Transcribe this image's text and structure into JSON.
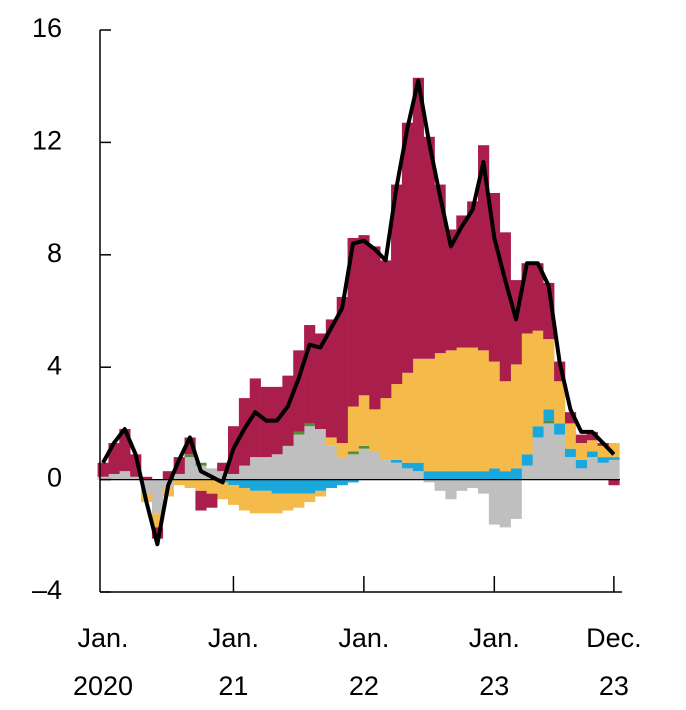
{
  "chart_data": {
    "type": "bar",
    "stacked": true,
    "categories": [
      "Jan.\n2020",
      null,
      null,
      null,
      null,
      null,
      null,
      null,
      null,
      null,
      null,
      null,
      "Jan.\n21",
      null,
      null,
      null,
      null,
      null,
      null,
      null,
      null,
      null,
      null,
      null,
      "Jan.\n22",
      null,
      null,
      null,
      null,
      null,
      null,
      null,
      null,
      null,
      null,
      null,
      "Jan.\n23",
      null,
      null,
      null,
      null,
      null,
      null,
      null,
      null,
      null,
      null,
      "Dec.\n23"
    ],
    "series": [
      {
        "color": "#bfbfbf",
        "values": [
          0.1,
          0.2,
          0.3,
          0.1,
          -0.5,
          -1.2,
          -0.3,
          0.2,
          0.8,
          0.5,
          0.4,
          0.3,
          0.2,
          0.5,
          0.8,
          0.8,
          0.9,
          1.2,
          1.6,
          1.9,
          1.8,
          1.2,
          0.8,
          0.9,
          1.1,
          1.0,
          0.7,
          0.6,
          0.4,
          0.3,
          -0.1,
          -0.4,
          -0.7,
          -0.4,
          -0.3,
          -0.5,
          -1.6,
          -1.7,
          -1.4,
          0.5,
          1.5,
          2.0,
          1.6,
          0.8,
          0.4,
          0.8,
          0.6,
          0.7
        ]
      },
      {
        "color": "#5a8a3a",
        "values": [
          0,
          0,
          0,
          0,
          0,
          0,
          0,
          0,
          0.1,
          0.1,
          0,
          0,
          0,
          0,
          0,
          0,
          0,
          0,
          0.1,
          0.1,
          0,
          0,
          0,
          0.1,
          0.1,
          0,
          0,
          0,
          0,
          0,
          0,
          0,
          0,
          0,
          0,
          0,
          0,
          0,
          0,
          0,
          0,
          0.1,
          0,
          0,
          0,
          0,
          0,
          0
        ]
      },
      {
        "color": "#1aa7dc",
        "values": [
          0,
          0,
          0,
          0,
          0,
          0,
          0,
          0,
          0,
          0,
          0,
          -0.1,
          -0.2,
          -0.3,
          -0.4,
          -0.4,
          -0.5,
          -0.5,
          -0.5,
          -0.5,
          -0.4,
          -0.3,
          -0.2,
          -0.1,
          0,
          0,
          0,
          0.1,
          0.2,
          0.3,
          0.3,
          0.3,
          0.3,
          0.3,
          0.3,
          0.3,
          0.4,
          0.3,
          0.4,
          0.4,
          0.4,
          0.4,
          0.4,
          0.3,
          0.3,
          0.2,
          0.2,
          0.1
        ]
      },
      {
        "color": "#f4bb4a",
        "values": [
          0,
          0,
          0,
          0,
          -0.3,
          -0.5,
          -0.3,
          -0.2,
          -0.3,
          -0.4,
          -0.5,
          -0.6,
          -0.7,
          -0.8,
          -0.8,
          -0.8,
          -0.7,
          -0.6,
          -0.5,
          -0.3,
          -0.2,
          0.3,
          0.5,
          1.6,
          1.8,
          1.5,
          2.2,
          2.7,
          3.2,
          3.7,
          4.0,
          4.2,
          4.3,
          4.4,
          4.4,
          4.3,
          3.8,
          3.2,
          3.7,
          4.3,
          3.4,
          2.5,
          1.5,
          0.9,
          0.6,
          0.4,
          0.4,
          0.5
        ]
      },
      {
        "color": "#a91e4b",
        "values": [
          0.5,
          1.1,
          1.5,
          0.8,
          0.1,
          -0.4,
          0.3,
          0.6,
          0.6,
          -0.7,
          -0.5,
          0.3,
          1.7,
          2.4,
          2.8,
          2.5,
          2.4,
          2.5,
          2.9,
          3.5,
          3.4,
          4.2,
          5.2,
          6.0,
          5.7,
          5.8,
          4.9,
          7.1,
          8.9,
          10.0,
          7.9,
          6.0,
          4.3,
          4.7,
          5.2,
          7.3,
          6.0,
          5.3,
          3.0,
          2.5,
          2.4,
          2.0,
          0.7,
          0.4,
          0.3,
          0.3,
          0.1,
          -0.2
        ]
      },
      {
        "type": "line",
        "color": "#000000",
        "values": [
          0.6,
          1.3,
          1.8,
          0.9,
          -0.8,
          -2.3,
          -0.2,
          0.7,
          1.5,
          0.3,
          0.1,
          -0.1,
          1.1,
          1.8,
          2.4,
          2.1,
          2.1,
          2.6,
          3.6,
          4.8,
          4.7,
          5.4,
          6.1,
          8.4,
          8.5,
          8.2,
          7.8,
          10.4,
          12.5,
          14.2,
          12.0,
          10.1,
          8.3,
          9.0,
          9.6,
          11.3,
          8.6,
          7.1,
          5.7,
          7.7,
          7.7,
          6.9,
          4.2,
          2.5,
          1.7,
          1.7,
          1.3,
          0.9
        ]
      }
    ],
    "ylim": [
      -4,
      16
    ],
    "yticks": [
      16,
      12,
      8,
      4,
      0,
      {
        "value": -4,
        "label": "–4"
      }
    ]
  }
}
